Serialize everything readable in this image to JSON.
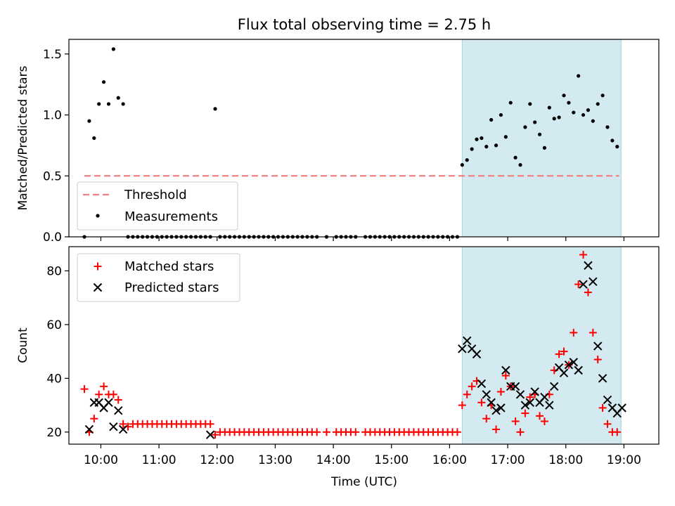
{
  "title": "Flux total observing time = 2.75 h",
  "colors": {
    "shade": "#d3eaf0",
    "shade_edge": "#a8d3e0",
    "threshold": "#f08080",
    "matched": "#ff0000",
    "predicted": "#000000",
    "measurements": "#000000"
  },
  "chart_data": [
    {
      "type": "scatter",
      "ylabel": "Matched/Predicted stars",
      "ylim": [
        0,
        1.62
      ],
      "xlim": [
        "09:27",
        "19:36"
      ],
      "yticks": [
        0.0,
        0.5,
        1.0,
        1.5
      ],
      "ytick_labels": [
        "0.0",
        "0.5",
        "1.0",
        "1.5"
      ],
      "shaded_span": [
        "16:13",
        "18:57"
      ],
      "threshold": {
        "name": "Threshold",
        "value": 0.5,
        "x_range": [
          "09:43",
          "18:55"
        ]
      },
      "legend": {
        "position": "lower-left",
        "entries": [
          "Threshold",
          "Measurements"
        ]
      },
      "series": [
        {
          "name": "Measurements",
          "x": [
            "09:43",
            "09:48",
            "09:53",
            "09:58",
            "10:03",
            "10:08",
            "10:13",
            "10:18",
            "10:23",
            "10:28",
            "10:33",
            "10:38",
            "10:43",
            "10:48",
            "10:53",
            "10:58",
            "11:03",
            "11:08",
            "11:13",
            "11:18",
            "11:23",
            "11:28",
            "11:33",
            "11:38",
            "11:43",
            "11:48",
            "11:53",
            "11:58",
            "12:03",
            "12:08",
            "12:13",
            "12:18",
            "12:23",
            "12:28",
            "12:33",
            "12:38",
            "12:43",
            "12:48",
            "12:53",
            "12:58",
            "13:03",
            "13:08",
            "13:13",
            "13:18",
            "13:23",
            "13:28",
            "13:33",
            "13:38",
            "13:43",
            "13:53",
            "14:03",
            "14:08",
            "14:13",
            "14:18",
            "14:23",
            "14:33",
            "14:38",
            "14:43",
            "14:48",
            "14:53",
            "14:58",
            "15:03",
            "15:08",
            "15:13",
            "15:18",
            "15:23",
            "15:28",
            "15:33",
            "15:38",
            "15:43",
            "15:48",
            "15:53",
            "15:58",
            "16:03",
            "16:08",
            "16:13",
            "16:18",
            "16:23",
            "16:28",
            "16:33",
            "16:38",
            "16:43",
            "16:48",
            "16:53",
            "16:58",
            "17:03",
            "17:08",
            "17:13",
            "17:18",
            "17:23",
            "17:28",
            "17:33",
            "17:38",
            "17:43",
            "17:48",
            "17:53",
            "17:58",
            "18:03",
            "18:08",
            "18:13",
            "18:18",
            "18:23",
            "18:28",
            "18:33",
            "18:38",
            "18:43",
            "18:48",
            "18:53"
          ],
          "y": [
            0.0,
            0.95,
            0.81,
            1.09,
            1.27,
            1.09,
            1.54,
            1.14,
            1.09,
            0.0,
            0.0,
            0.0,
            0.0,
            0.0,
            0.0,
            0.0,
            0.0,
            0.0,
            0.0,
            0.0,
            0.0,
            0.0,
            0.0,
            0.0,
            0.0,
            0.0,
            0.0,
            1.05,
            0.0,
            0.0,
            0.0,
            0.0,
            0.0,
            0.0,
            0.0,
            0.0,
            0.0,
            0.0,
            0.0,
            0.0,
            0.0,
            0.0,
            0.0,
            0.0,
            0.0,
            0.0,
            0.0,
            0.0,
            0.0,
            0.0,
            0.0,
            0.0,
            0.0,
            0.0,
            0.0,
            0.0,
            0.0,
            0.0,
            0.0,
            0.0,
            0.0,
            0.0,
            0.0,
            0.0,
            0.0,
            0.0,
            0.0,
            0.0,
            0.0,
            0.0,
            0.0,
            0.0,
            0.0,
            0.0,
            0.0,
            0.59,
            0.63,
            0.72,
            0.8,
            0.81,
            0.74,
            0.96,
            0.75,
            1.0,
            0.82,
            1.1,
            0.65,
            0.59,
            0.9,
            1.09,
            0.94,
            0.84,
            0.73,
            1.06,
            0.97,
            0.98,
            1.16,
            1.1,
            1.02,
            1.32,
            1.0,
            1.04,
            0.95,
            1.09,
            1.16,
            0.9,
            0.79,
            0.74
          ]
        }
      ]
    },
    {
      "type": "scatter",
      "xlabel": "Time (UTC)",
      "ylabel": "Count",
      "ylim": [
        15.5,
        89
      ],
      "xlim": [
        "09:27",
        "19:36"
      ],
      "yticks": [
        20,
        40,
        60,
        80
      ],
      "ytick_labels": [
        "20",
        "40",
        "60",
        "80"
      ],
      "xtick_labels": [
        "10:00",
        "11:00",
        "12:00",
        "13:00",
        "14:00",
        "15:00",
        "16:00",
        "17:00",
        "18:00",
        "19:00"
      ],
      "shaded_span": [
        "16:13",
        "18:57"
      ],
      "legend": {
        "position": "upper-left",
        "entries": [
          "Matched stars",
          "Predicted stars"
        ]
      },
      "series": [
        {
          "name": "Matched stars",
          "marker": "plus",
          "x": [
            "09:43",
            "09:48",
            "09:53",
            "09:58",
            "10:03",
            "10:08",
            "10:13",
            "10:18",
            "10:23",
            "10:28",
            "10:33",
            "10:38",
            "10:43",
            "10:48",
            "10:53",
            "10:58",
            "11:03",
            "11:08",
            "11:13",
            "11:18",
            "11:23",
            "11:28",
            "11:33",
            "11:38",
            "11:43",
            "11:48",
            "11:53",
            "11:58",
            "12:03",
            "12:08",
            "12:13",
            "12:18",
            "12:23",
            "12:28",
            "12:33",
            "12:38",
            "12:43",
            "12:48",
            "12:53",
            "12:58",
            "13:03",
            "13:08",
            "13:13",
            "13:18",
            "13:23",
            "13:28",
            "13:33",
            "13:38",
            "13:43",
            "13:53",
            "14:03",
            "14:08",
            "14:13",
            "14:18",
            "14:23",
            "14:33",
            "14:38",
            "14:43",
            "14:48",
            "14:53",
            "14:58",
            "15:03",
            "15:08",
            "15:13",
            "15:18",
            "15:23",
            "15:28",
            "15:33",
            "15:38",
            "15:43",
            "15:48",
            "15:53",
            "15:58",
            "16:03",
            "16:08",
            "16:13",
            "16:18",
            "16:23",
            "16:28",
            "16:33",
            "16:38",
            "16:43",
            "16:48",
            "16:53",
            "16:58",
            "17:03",
            "17:08",
            "17:13",
            "17:18",
            "17:23",
            "17:28",
            "17:33",
            "17:38",
            "17:43",
            "17:48",
            "17:53",
            "17:58",
            "18:03",
            "18:08",
            "18:13",
            "18:18",
            "18:23",
            "18:28",
            "18:33",
            "18:38",
            "18:43",
            "18:48",
            "18:53"
          ],
          "y": [
            36,
            20,
            25,
            34,
            37,
            34,
            34,
            32,
            23,
            22,
            23,
            23,
            23,
            23,
            23,
            23,
            23,
            23,
            23,
            23,
            23,
            23,
            23,
            23,
            23,
            23,
            23,
            19,
            20,
            20,
            20,
            20,
            20,
            20,
            20,
            20,
            20,
            20,
            20,
            20,
            20,
            20,
            20,
            20,
            20,
            20,
            20,
            20,
            20,
            20,
            20,
            20,
            20,
            20,
            20,
            20,
            20,
            20,
            20,
            20,
            20,
            20,
            20,
            20,
            20,
            20,
            20,
            20,
            20,
            20,
            20,
            20,
            20,
            20,
            20,
            30,
            34,
            37,
            39,
            31,
            25,
            30,
            21,
            35,
            41,
            37,
            24,
            20,
            27,
            33,
            34,
            26,
            24,
            34,
            43,
            49,
            50,
            45,
            57,
            75,
            86,
            72,
            57,
            47,
            29,
            23,
            20,
            20
          ]
        },
        {
          "name": "Predicted stars",
          "marker": "x",
          "x": [
            "09:48",
            "09:53",
            "09:58",
            "10:03",
            "10:08",
            "10:13",
            "10:18",
            "10:23",
            "11:53",
            "16:13",
            "16:18",
            "16:23",
            "16:28",
            "16:33",
            "16:38",
            "16:43",
            "16:48",
            "16:53",
            "16:58",
            "17:03",
            "17:08",
            "17:13",
            "17:18",
            "17:23",
            "17:28",
            "17:33",
            "17:38",
            "17:43",
            "17:48",
            "17:53",
            "17:58",
            "18:03",
            "18:08",
            "18:13",
            "18:18",
            "18:23",
            "18:28",
            "18:33",
            "18:38",
            "18:43",
            "18:48",
            "18:53"
          ],
          "y": [
            21,
            31,
            31,
            29,
            31,
            22,
            28,
            21,
            19,
            51,
            54,
            51,
            49,
            38,
            34,
            31,
            28,
            29,
            43,
            37,
            37,
            34,
            30,
            31,
            35,
            31,
            33,
            30,
            37,
            44,
            42,
            45,
            46,
            43,
            75,
            82,
            76,
            52,
            40,
            32,
            29,
            27
          ]
        },
        {
          "name": "",
          "marker": "x",
          "x": [
            "18:58"
          ],
          "y": [
            29
          ]
        }
      ]
    }
  ]
}
